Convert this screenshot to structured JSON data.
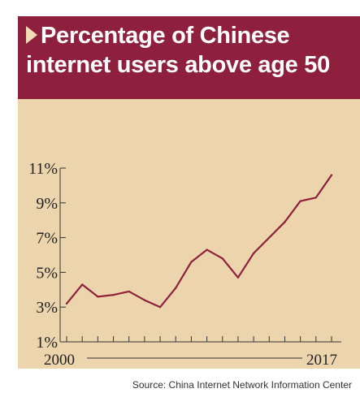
{
  "header": {
    "title_line1": "Percentage of Chinese",
    "title_line2": "internet users above age 50"
  },
  "colors": {
    "header_bg": "#8e1f3d",
    "plot_bg": "#ecd5ad",
    "line": "#8e1f3d",
    "arrow": "#f2dcb8"
  },
  "source": "Source: China Internet Network Information Center",
  "chart_data": {
    "type": "line",
    "title": "Percentage of Chinese internet users above age 50",
    "xlabel": "",
    "ylabel": "",
    "x": [
      2000,
      2001,
      2002,
      2003,
      2004,
      2005,
      2006,
      2007,
      2008,
      2009,
      2010,
      2011,
      2012,
      2013,
      2014,
      2015,
      2016,
      2017
    ],
    "series": [
      {
        "values": [
          3.2,
          4.3,
          3.6,
          3.7,
          3.9,
          3.4,
          3.0,
          4.1,
          5.6,
          6.3,
          5.8,
          4.7,
          6.1,
          7.0,
          7.9,
          9.1,
          9.3,
          10.6
        ]
      }
    ],
    "x_tick_labels": [
      "2000",
      "2017"
    ],
    "y_ticks": [
      1,
      3,
      5,
      7,
      9,
      11
    ],
    "y_tick_labels": [
      "1%",
      "3%",
      "5%",
      "7%",
      "9%",
      "11%"
    ],
    "ylim": [
      1,
      11
    ],
    "grid": false
  }
}
